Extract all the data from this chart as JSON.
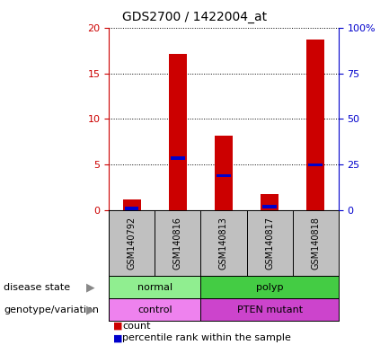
{
  "title": "GDS2700 / 1422004_at",
  "samples": [
    "GSM140792",
    "GSM140816",
    "GSM140813",
    "GSM140817",
    "GSM140818"
  ],
  "counts": [
    1.2,
    17.1,
    8.2,
    1.8,
    18.7
  ],
  "percentiles": [
    0.2,
    5.7,
    3.8,
    0.4,
    5.0
  ],
  "ylim_left": [
    0,
    20
  ],
  "ylim_right": [
    0,
    100
  ],
  "yticks_left": [
    0,
    5,
    10,
    15,
    20
  ],
  "disease_state": [
    {
      "label": "normal",
      "span": [
        0,
        2
      ],
      "color": "#90EE90"
    },
    {
      "label": "polyp",
      "span": [
        2,
        5
      ],
      "color": "#44CC44"
    }
  ],
  "genotype": [
    {
      "label": "control",
      "span": [
        0,
        2
      ],
      "color": "#EE82EE"
    },
    {
      "label": "PTEN mutant",
      "span": [
        2,
        5
      ],
      "color": "#CC44CC"
    }
  ],
  "bar_color": "#CC0000",
  "marker_color": "#0000CC",
  "sample_bg_color": "#C0C0C0",
  "plot_bg": "#FFFFFF",
  "left_axis_color": "#CC0000",
  "right_axis_color": "#0000CC",
  "grid_color": "#000000",
  "label_disease": "disease state",
  "label_genotype": "genotype/variation",
  "legend_count": "count",
  "legend_percentile": "percentile rank within the sample"
}
